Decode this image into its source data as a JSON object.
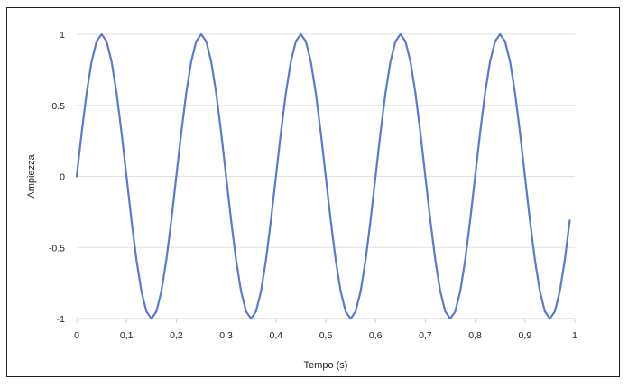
{
  "chart_data": {
    "type": "line",
    "title": "",
    "xlabel": "Tempo (s)",
    "ylabel": "Ampiezza",
    "xlim": [
      0,
      1
    ],
    "ylim": [
      -1,
      1
    ],
    "x_ticks": [
      0,
      0.1,
      0.2,
      0.3,
      0.4,
      0.5,
      0.6,
      0.7,
      0.8,
      0.9,
      1
    ],
    "x_tick_labels": [
      "0",
      "0,1",
      "0,2",
      "0,3",
      "0,4",
      "0,5",
      "0,6",
      "0,7",
      "0,8",
      "0,9",
      "1"
    ],
    "y_ticks": [
      1,
      0.5,
      0,
      -0.5,
      -1
    ],
    "y_tick_labels": [
      "1",
      "0.5",
      "0",
      "-0.5",
      "-1"
    ],
    "grid": "horizontal",
    "legend": "none",
    "colors": {
      "line": "#5b78d4"
    },
    "series": [
      {
        "x": [
          0,
          0.01,
          0.02,
          0.03,
          0.04,
          0.05,
          0.06,
          0.07,
          0.08,
          0.09,
          0.1,
          0.11,
          0.12,
          0.13,
          0.14,
          0.15,
          0.16,
          0.17,
          0.18,
          0.19,
          0.2,
          0.21,
          0.22,
          0.23,
          0.24,
          0.25,
          0.26,
          0.27,
          0.28,
          0.29,
          0.3,
          0.31,
          0.32,
          0.33,
          0.34,
          0.35,
          0.36,
          0.37,
          0.38,
          0.39,
          0.4,
          0.41,
          0.42,
          0.43,
          0.44,
          0.45,
          0.46,
          0.47,
          0.48,
          0.49,
          0.5,
          0.51,
          0.52,
          0.53,
          0.54,
          0.55,
          0.56,
          0.57,
          0.58,
          0.59,
          0.6,
          0.61,
          0.62,
          0.63,
          0.64,
          0.65,
          0.66,
          0.67,
          0.68,
          0.69,
          0.7,
          0.71,
          0.72,
          0.73,
          0.74,
          0.75,
          0.76,
          0.77,
          0.78,
          0.79,
          0.8,
          0.81,
          0.82,
          0.83,
          0.84,
          0.85,
          0.86,
          0.87,
          0.88,
          0.89,
          0.9,
          0.91,
          0.92,
          0.93,
          0.94,
          0.95,
          0.96,
          0.97,
          0.98,
          0.99
        ],
        "y": [
          0,
          0.309,
          0.588,
          0.809,
          0.951,
          1,
          0.951,
          0.809,
          0.588,
          0.309,
          0,
          -0.309,
          -0.588,
          -0.809,
          -0.951,
          -1,
          -0.951,
          -0.809,
          -0.588,
          -0.309,
          0,
          0.309,
          0.588,
          0.809,
          0.951,
          1,
          0.951,
          0.809,
          0.588,
          0.309,
          0,
          -0.309,
          -0.588,
          -0.809,
          -0.951,
          -1,
          -0.951,
          -0.809,
          -0.588,
          -0.309,
          0,
          0.309,
          0.588,
          0.809,
          0.951,
          1,
          0.951,
          0.809,
          0.588,
          0.309,
          0,
          -0.309,
          -0.588,
          -0.809,
          -0.951,
          -1,
          -0.951,
          -0.809,
          -0.588,
          -0.309,
          0,
          0.309,
          0.588,
          0.809,
          0.951,
          1,
          0.951,
          0.809,
          0.588,
          0.309,
          0,
          -0.309,
          -0.588,
          -0.809,
          -0.951,
          -1,
          -0.951,
          -0.809,
          -0.588,
          -0.309,
          0,
          0.309,
          0.588,
          0.809,
          0.951,
          1,
          0.951,
          0.809,
          0.588,
          0.309,
          0,
          -0.309,
          -0.588,
          -0.809,
          -0.951,
          -1,
          -0.951,
          -0.809,
          -0.588,
          -0.309
        ]
      }
    ]
  }
}
